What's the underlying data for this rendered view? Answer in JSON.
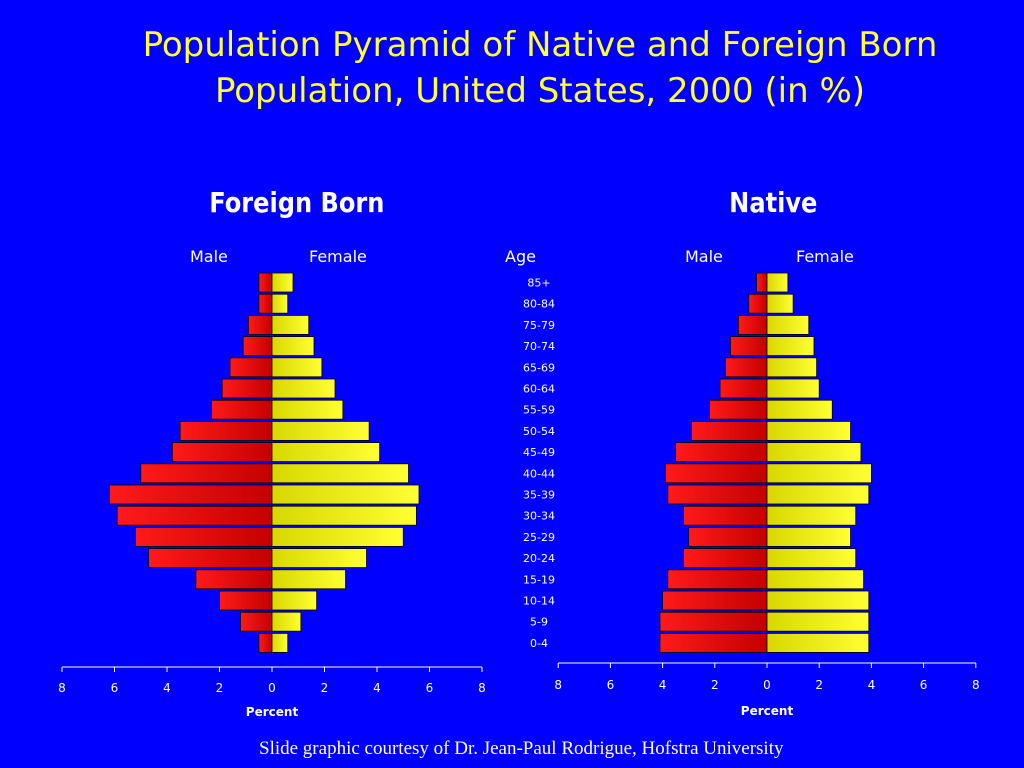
{
  "slide": {
    "title_line1": "Population Pyramid of Native and Foreign Born",
    "title_line2": "Population, United States, 2000 (in %)",
    "credit": "Slide graphic courtesy of Dr. Jean-Paul Rodrigue, Hofstra University",
    "age_label": "Age"
  },
  "colors": {
    "background": "#0000ff",
    "male": "#ff0000",
    "female": "#ffff00",
    "title": "#ffff33",
    "text": "#ffffff"
  },
  "chart_data": [
    {
      "type": "bar",
      "orientation": "horizontal-pyramid",
      "title": "Foreign Born",
      "left_label": "Male",
      "right_label": "Female",
      "categories": [
        "85+",
        "80-84",
        "75-79",
        "70-74",
        "65-69",
        "60-64",
        "55-59",
        "50-54",
        "45-49",
        "40-44",
        "35-39",
        "30-34",
        "25-29",
        "20-24",
        "15-19",
        "10-14",
        "5-9",
        "0-4"
      ],
      "series": [
        {
          "name": "Male",
          "values": [
            0.5,
            0.5,
            0.9,
            1.1,
            1.6,
            1.9,
            2.3,
            3.5,
            3.8,
            5.0,
            6.2,
            5.9,
            5.2,
            4.7,
            2.9,
            2.0,
            1.2,
            0.5
          ]
        },
        {
          "name": "Female",
          "values": [
            0.8,
            0.6,
            1.4,
            1.6,
            1.9,
            2.4,
            2.7,
            3.7,
            4.1,
            5.2,
            5.6,
            5.5,
            5.0,
            3.6,
            2.8,
            1.7,
            1.1,
            0.6
          ]
        }
      ],
      "xlabel": "Percent",
      "xticks": [
        "8",
        "6",
        "4",
        "2",
        "0",
        "2",
        "4",
        "6",
        "8"
      ],
      "xlim": [
        -8,
        8
      ]
    },
    {
      "type": "bar",
      "orientation": "horizontal-pyramid",
      "title": "Native",
      "left_label": "Male",
      "right_label": "Female",
      "categories": [
        "85+",
        "80-84",
        "75-79",
        "70-74",
        "65-69",
        "60-64",
        "55-59",
        "50-54",
        "45-49",
        "40-44",
        "35-39",
        "30-34",
        "25-29",
        "20-24",
        "15-19",
        "10-14",
        "5-9",
        "0-4"
      ],
      "series": [
        {
          "name": "Male",
          "values": [
            0.4,
            0.7,
            1.1,
            1.4,
            1.6,
            1.8,
            2.2,
            2.9,
            3.5,
            3.9,
            3.8,
            3.2,
            3.0,
            3.2,
            3.8,
            4.0,
            4.1,
            4.1
          ]
        },
        {
          "name": "Female",
          "values": [
            0.8,
            1.0,
            1.6,
            1.8,
            1.9,
            2.0,
            2.5,
            3.2,
            3.6,
            4.0,
            3.9,
            3.4,
            3.2,
            3.4,
            3.7,
            3.9,
            3.9,
            3.9
          ]
        }
      ],
      "xlabel": "Percent",
      "xticks": [
        "8",
        "6",
        "4",
        "2",
        "0",
        "2",
        "4",
        "6",
        "8"
      ],
      "xlim": [
        -8,
        8
      ]
    }
  ]
}
